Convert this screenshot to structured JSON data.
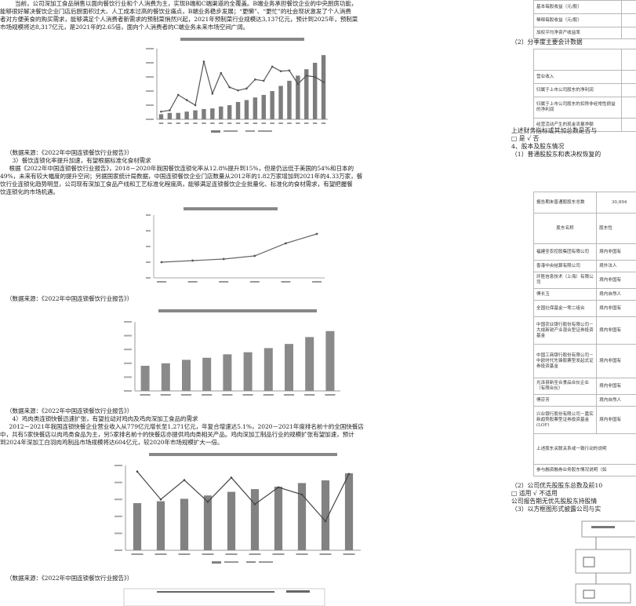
{
  "left": {
    "intro_lines": [
      "　　当前，公司深加工食品销售以面向餐饮行业和个人消费为主，实现B端和C端渠道的全覆盖。B端业务承担餐饮企业的中央厨房功能，",
      "能够很好解决餐饮企业门店后厨面积过大、人工成本过高的餐饮业痛点，B端业务稳步发展；“更懒”、“更忙”的社会现状激发了个人消费",
      "者对方便美食的购买需求，能够满足个人消费者新需求的预制菜悄然兴起，2021年预制菜行业规模达3,137亿元，预计到2025年，预制菜",
      "市场规模将达8,317亿元，是2021年的2.65倍，面向个人消费者的C端业务未来市场空间广阔。"
    ],
    "source_1": "（数据来源：《2022年中国连锁餐饮行业报告》）",
    "section_3_title": "　3）餐饮连锁化率提升加速，有望根据标准化食材需求",
    "section_3_lines": [
      "　根据《2022年中国连锁餐饮行业报告》，2018－2020年我国餐饮连锁化率从12.8%提升到15%，但是仍远低于美国的54%和日本的",
      "49%，未来有较大幅度的提升空间；另据国家统计局数据，中国连锁餐饮企业门店数量从2012年的1.82万家增加到2021年的4.33万家，餐",
      "饮行业连锁化趋势明显，公司现有深加工食品产线和工艺标准化程度高，能够满足连锁餐饮企业批量化、标准化的食材需求，有望把握餐",
      "饮连锁化的市场机遇。"
    ],
    "source_2": "（数据来源：《2022年中国连锁餐饮行业报告》）",
    "source_3": "（数据来源：《2022年中国连锁餐饮行业报告》）",
    "section_4_title": "　4）鸡肉类连锁快餐迅速扩张，有望拉动对鸡肉及鸡肉深加工食品的需求",
    "section_4_lines": [
      "　2012－2021年我国连锁快餐企业营业收入从779亿元增长至1,271亿元，年复合增速达5.1%，2020－2021年度排名前十的全国快餐店",
      "中，共有5家快餐店以肉鸡类食品为主，另5家排名前十的快餐店亦提供鸡肉类相关产品。鸡肉深加工制品行业的规模扩张有望加速，预计",
      "到2024年深加工白羽肉鸡制品市场规模将达604亿元，较2020年市场规模扩大一倍。"
    ],
    "source_4": "（数据来源：《2022年中国连锁餐饮行业报告》）"
  },
  "right": {
    "top_rows": [
      "基本每股收益（元/股）",
      "稀释每股收益（元/股）",
      "加权平均净资产收益率"
    ],
    "quarter_title": "（2）分季度主要会计数据",
    "quarter_rows": [
      "营业收入",
      "归属于上市公司股东的净利润",
      "归属于上市公司股东的扣除非经常性损益的净利润",
      "经营活动产生的现金流量净额"
    ],
    "diff_line": "上述财务指标或其加总数是否与",
    "diff_answer": "□ 是 √ 否",
    "section_4": "4、股本及股东情况",
    "sub_1": "（1）普通股股东和表决权恢复的",
    "holders_total_label": "报告期末普通股股东总数",
    "holders_total_value": "30,894",
    "holder_head_name": "股东名称",
    "holder_head_type": "股东性",
    "holders": [
      {
        "name": "福建圣农控股集团有限公司",
        "type": "境内非国有"
      },
      {
        "name": "香港中央结算有限公司",
        "type": "境外法人"
      },
      {
        "name": "环胜信息技术（上海）有限公司",
        "type": "境内非国有"
      },
      {
        "name": "傅长玉",
        "type": "境内自然人"
      },
      {
        "name": "全国社保基金一零二组合",
        "type": "境内非国有"
      },
      {
        "name": "中国农业银行股份有限公司－大成新锐产业混合型证券投资基金",
        "type": "境内非国有"
      },
      {
        "name": "中国工商银行股份有限公司－中欧时代先锋股票型发起式证券投资基金",
        "type": "境内非国有"
      },
      {
        "name": "光泽县新圣合食品合伙企业（有限合伙）",
        "type": "境内非国有"
      },
      {
        "name": "傅芬芳",
        "type": "境内自然人"
      },
      {
        "name": "兴业银行股份有限公司－嘉实新趋势股票型证券投资基金(LOF)",
        "type": "境内非国有"
      }
    ],
    "related_note": "上述股东关联关系或一致行动的说明",
    "margin_note": "参与融资融券业务股东情况说明（如",
    "sub_2": "（2）公司优先股股东总数及前10",
    "applicable": "□ 适用 √ 不适用",
    "no_pref": "公司报告期无优先股股东持股情",
    "sub_3": "（3）以方框图形式披露公司与实"
  },
  "chart_data": [
    {
      "type": "bar",
      "title": "",
      "xlabel": "",
      "ylabel": "",
      "categories": [
        "",
        "",
        "",
        "",
        "",
        "",
        "",
        "",
        "",
        "",
        "",
        "",
        "",
        "",
        "",
        "",
        "",
        "",
        "",
        ""
      ],
      "values": [
        8,
        10,
        10,
        12,
        14,
        16,
        17,
        20,
        22,
        27,
        30,
        34,
        38,
        44,
        52,
        60,
        68,
        78,
        88,
        100
      ],
      "overlay_line": [
        12,
        14,
        38,
        30,
        22,
        90,
        40,
        72,
        50,
        45,
        48,
        62,
        60,
        82,
        75,
        76,
        55,
        68,
        66,
        58
      ],
      "ylim": [
        0,
        110
      ]
    },
    {
      "type": "line",
      "title": "",
      "xlabel": "",
      "ylabel": "",
      "x": [
        "",
        "",
        "",
        "",
        "",
        ""
      ],
      "values": [
        10,
        11,
        12,
        14,
        22,
        28
      ],
      "ylim": [
        0,
        40
      ]
    },
    {
      "type": "bar",
      "title": "",
      "xlabel": "",
      "ylabel": "",
      "categories": [
        "",
        "",
        "",
        "",
        "",
        "",
        "",
        "",
        "",
        ""
      ],
      "values": [
        1.82,
        2.0,
        2.25,
        2.4,
        2.65,
        2.8,
        3.1,
        3.4,
        3.9,
        4.33
      ],
      "ylim": [
        0,
        5
      ]
    },
    {
      "type": "bar",
      "title": "",
      "xlabel": "",
      "ylabel": "",
      "categories": [
        "",
        "",
        "",
        "",
        "",
        "",
        "",
        "",
        "",
        ""
      ],
      "values": [
        779,
        810,
        850,
        905,
        965,
        1010,
        1050,
        1110,
        1155,
        1271
      ],
      "overlay_line": [
        6.5,
        4.2,
        5.8,
        4.0,
        6.0,
        3.8,
        5.2,
        4.6,
        2.4,
        6.3
      ],
      "ylim": [
        0,
        1400
      ]
    }
  ]
}
